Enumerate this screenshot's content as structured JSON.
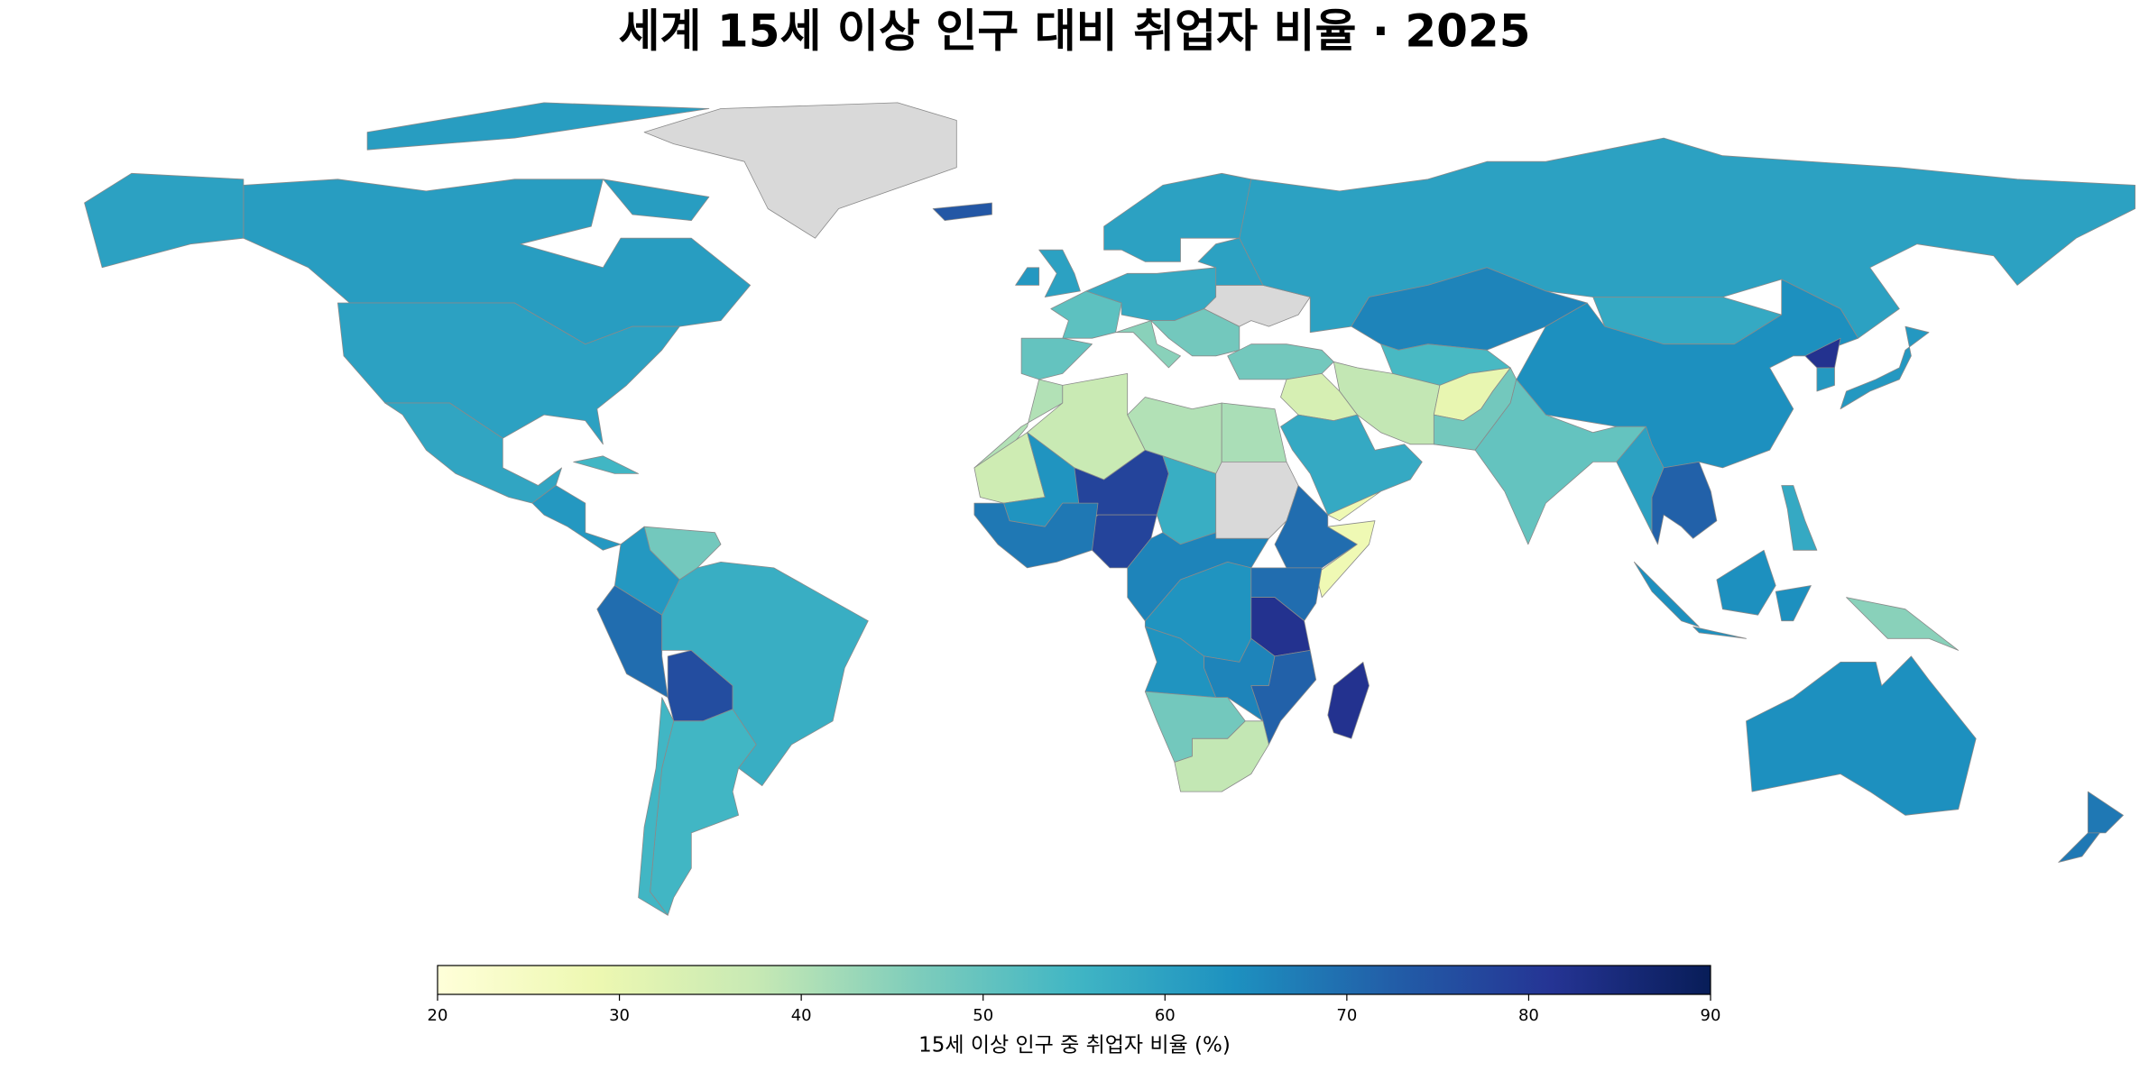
{
  "chart_data": {
    "type": "choropleth",
    "title": "세계 15세 이상 인구 대비 취업자 비율 · 2025",
    "colorbar_label": "15세 이상 인구 중 취업자 비율 (%)",
    "clim": [
      20,
      90
    ],
    "cticks": [
      20,
      30,
      40,
      50,
      60,
      70,
      80,
      90
    ],
    "colorscale": [
      "#ffffd9",
      "#edf8b1",
      "#c7e9b4",
      "#7fcdbb",
      "#41b6c4",
      "#1d91c0",
      "#225ea8",
      "#253494",
      "#081d58"
    ],
    "no_data_color": "#d9d9d9",
    "values": [
      null,
      61,
      61,
      61,
      60,
      60,
      59,
      62,
      55,
      48,
      62,
      70,
      76,
      57,
      55,
      55,
      74,
      60,
      60,
      62,
      50,
      51,
      58,
      45,
      48,
      null,
      60,
      60,
      66,
      54,
      58,
      64,
      82,
      62,
      62,
      48,
      38,
      34,
      58,
      28,
      30,
      48,
      50,
      60,
      72,
      64,
      64,
      64,
      64,
      45,
      58,
      64,
      68,
      68,
      40,
      37,
      40,
      41,
      36,
      63,
      78,
      78,
      57,
      null,
      68,
      70,
      28,
      66,
      63,
      70,
      82,
      63,
      66,
      72,
      48,
      38,
      82
    ]
  }
}
